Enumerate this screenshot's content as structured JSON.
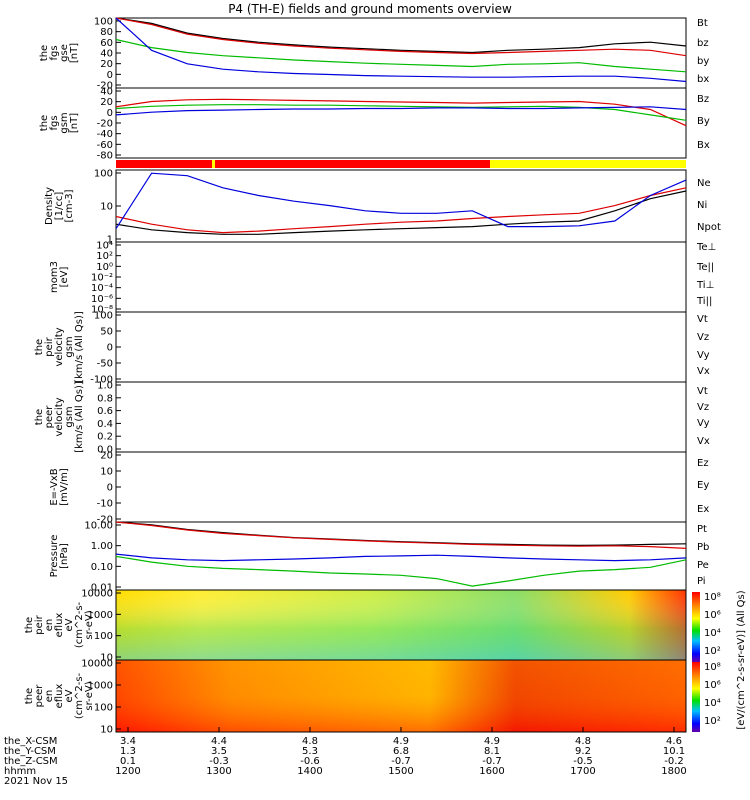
{
  "title": "P4 (TH-E) fields and ground moments overview",
  "chart_data": [
    {
      "type": "line",
      "panel": "fgs-gse",
      "ylabel": [
        "the",
        "fgs",
        "gse",
        "[nT]"
      ],
      "yticks": [
        "100",
        "80",
        "60",
        "40",
        "20",
        "0",
        "-20"
      ],
      "ylim": [
        -30,
        100
      ],
      "legend": [
        "Bt",
        "bz",
        "by",
        "bx"
      ],
      "legend_colors": [
        "#000000",
        "#dd0000",
        "#00bb00",
        "#0000dd"
      ],
      "series": [
        {
          "name": "Bt",
          "color": "#000000",
          "y": [
            130,
            90,
            72,
            62,
            55,
            50,
            46,
            43,
            40,
            38,
            36,
            40,
            42,
            45,
            52,
            55,
            48
          ]
        },
        {
          "name": "bz",
          "color": "#dd0000",
          "y": [
            125,
            88,
            70,
            60,
            53,
            48,
            44,
            41,
            38,
            36,
            34,
            36,
            38,
            40,
            42,
            40,
            30
          ]
        },
        {
          "name": "by",
          "color": "#00bb00",
          "y": [
            60,
            45,
            36,
            30,
            26,
            22,
            19,
            16,
            14,
            12,
            10,
            14,
            15,
            17,
            10,
            5,
            0
          ]
        },
        {
          "name": "bx",
          "color": "#0000dd",
          "y": [
            120,
            40,
            15,
            5,
            0,
            -3,
            -5,
            -7,
            -8,
            -9,
            -10,
            -10,
            -9,
            -8,
            -8,
            -12,
            -18
          ]
        }
      ]
    },
    {
      "type": "line",
      "panel": "fgs-gsm",
      "ylabel": [
        "the",
        "fgs",
        "gsm",
        "[nT]"
      ],
      "yticks": [
        "40",
        "20",
        "0",
        "-20",
        "-40",
        "-60",
        "-80"
      ],
      "ylim": [
        -90,
        40
      ],
      "legend": [
        "Bz",
        "By",
        "Bx"
      ],
      "legend_colors": [
        "#dd0000",
        "#00bb00",
        "#0000dd"
      ],
      "series": [
        {
          "name": "Bz",
          "color": "#dd0000",
          "y": [
            5,
            15,
            18,
            19,
            18,
            17,
            16,
            15,
            14,
            13,
            12,
            13,
            14,
            15,
            10,
            0,
            -30
          ]
        },
        {
          "name": "By",
          "color": "#00bb00",
          "y": [
            2,
            6,
            8,
            9,
            9,
            8,
            8,
            7,
            6,
            5,
            4,
            5,
            6,
            4,
            0,
            -10,
            -20
          ]
        },
        {
          "name": "Bx",
          "color": "#0000dd",
          "y": [
            -10,
            -5,
            -2,
            -1,
            0,
            1,
            1,
            2,
            2,
            3,
            3,
            2,
            2,
            3,
            4,
            5,
            0
          ]
        }
      ]
    },
    {
      "type": "line",
      "panel": "density",
      "ylabel": [
        "Density",
        "[1/cc]",
        "[cm-3]"
      ],
      "yticks": [
        "100",
        "10",
        "1"
      ],
      "ylim": [
        0.3,
        200
      ],
      "scale": "log",
      "legend": [
        "Ne",
        "Ni",
        "Npot"
      ],
      "legend_colors": [
        "#dd0000",
        "#000000",
        "#0000dd"
      ],
      "series": [
        {
          "name": "Ne",
          "color": "#dd0000",
          "y": [
            3,
            1.5,
            0.9,
            0.7,
            0.8,
            1.0,
            1.2,
            1.5,
            1.8,
            2.0,
            2.5,
            3,
            3.5,
            4,
            8,
            20,
            40
          ]
        },
        {
          "name": "Ni",
          "color": "#000000",
          "y": [
            1.5,
            0.9,
            0.7,
            0.6,
            0.6,
            0.7,
            0.8,
            0.9,
            1.0,
            1.1,
            1.2,
            1.5,
            1.8,
            2,
            5,
            15,
            30
          ]
        },
        {
          "name": "Npot",
          "color": "#0000dd",
          "y": [
            1,
            150,
            120,
            40,
            20,
            12,
            8,
            5,
            4,
            4,
            5,
            1.2,
            1.2,
            1.3,
            2,
            20,
            80
          ]
        }
      ]
    },
    {
      "type": "line",
      "panel": "temperature",
      "ylabel": [
        "mom3",
        "[eV]"
      ],
      "yticks": [
        "10⁴",
        "10²",
        "10⁰",
        "10⁻²",
        "10⁻⁴",
        "10⁻⁶",
        "10⁻⁸"
      ],
      "legend": [
        "Te⊥",
        "Te||",
        "Ti⊥",
        "Ti||"
      ],
      "legend_colors": [
        "#dd0000",
        "#000000",
        "#0000dd",
        "#00bb00"
      ],
      "series": []
    },
    {
      "type": "line",
      "panel": "peir-velocity",
      "ylabel": [
        "the",
        "peir",
        "velocity",
        "gsm",
        "[km/s (All Qs)]"
      ],
      "yticks": [
        "100",
        "50",
        "0",
        "-50",
        "-100"
      ],
      "ylim": [
        -100,
        100
      ],
      "legend": [
        "Vt",
        "Vz",
        "Vy",
        "Vx"
      ],
      "legend_colors": [
        "#000000",
        "#dd0000",
        "#00bb00",
        "#0000dd"
      ],
      "series": []
    },
    {
      "type": "line",
      "panel": "peer-velocity",
      "ylabel": [
        "the",
        "peer",
        "velocity",
        "gsm",
        "[km/s (All Qs)]"
      ],
      "yticks": [
        "1.0",
        "0.8",
        "0.6",
        "0.4",
        "0.2",
        "0.0"
      ],
      "ylim": [
        0,
        1
      ],
      "legend": [
        "Vt",
        "Vz",
        "Vy",
        "Vx"
      ],
      "legend_colors": [
        "#000000",
        "#dd0000",
        "#00bb00",
        "#0000dd"
      ],
      "series": []
    },
    {
      "type": "line",
      "panel": "efield",
      "ylabel": [
        "E=-VxB",
        "[mV/m]"
      ],
      "yticks": [
        "20",
        "10",
        "0",
        "-10",
        "-20"
      ],
      "ylim": [
        -20,
        20
      ],
      "legend": [
        "Ez",
        "Ey",
        "Ex"
      ],
      "legend_colors": [
        "#dd0000",
        "#00bb00",
        "#0000dd"
      ],
      "series": []
    },
    {
      "type": "line",
      "panel": "pressure",
      "ylabel": [
        "Pressure",
        "[nPa]"
      ],
      "yticks": [
        "10.00",
        "1.00",
        "0.10",
        "0.01"
      ],
      "ylim": [
        0.005,
        20
      ],
      "scale": "log",
      "legend": [
        "Pt",
        "Pb",
        "Pe",
        "Pi"
      ],
      "legend_colors": [
        "#000000",
        "#dd0000",
        "#00bb00",
        "#0000dd"
      ],
      "series": [
        {
          "name": "Pt",
          "color": "#000000",
          "y": [
            30,
            14,
            8,
            5.5,
            4,
            3,
            2.5,
            2.1,
            1.8,
            1.6,
            1.4,
            1.3,
            1.2,
            1.15,
            1.2,
            1.3,
            1.4
          ]
        },
        {
          "name": "Pb",
          "color": "#dd0000",
          "y": [
            28,
            13,
            7.5,
            5,
            3.8,
            2.9,
            2.4,
            2.0,
            1.7,
            1.5,
            1.3,
            1.2,
            1.1,
            1.05,
            1.1,
            1.0,
            0.8
          ]
        },
        {
          "name": "Pe",
          "color": "#00bb00",
          "y": [
            0.3,
            0.15,
            0.09,
            0.07,
            0.06,
            0.05,
            0.04,
            0.035,
            0.03,
            0.02,
            0.008,
            0.015,
            0.03,
            0.05,
            0.06,
            0.08,
            0.2
          ]
        },
        {
          "name": "Pi",
          "color": "#0000dd",
          "y": [
            0.4,
            0.25,
            0.2,
            0.18,
            0.2,
            0.22,
            0.25,
            0.3,
            0.32,
            0.35,
            0.3,
            0.25,
            0.22,
            0.2,
            0.18,
            0.2,
            0.25
          ]
        }
      ]
    },
    {
      "type": "heatmap",
      "panel": "peir-en-eflux",
      "ylabel": [
        "the",
        "peir",
        "en",
        "eflux",
        "eV",
        "(cm^2-s-",
        "sr-eV)"
      ],
      "yticks": [
        "10000",
        "1000",
        "100",
        "10"
      ]
    },
    {
      "type": "heatmap",
      "panel": "peer-en-eflux",
      "ylabel": [
        "the",
        "peer",
        "en",
        "eflux",
        "eV",
        "(cm^2-s-",
        "sr-eV)"
      ],
      "yticks": [
        "10000",
        "1000",
        "100",
        "10"
      ]
    }
  ],
  "colorbar": {
    "label": "[eV/(cm^2-s-sr-eV)] (All Qs)",
    "ticks_top": [
      "10⁸",
      "10⁶",
      "10⁴",
      "10²"
    ],
    "ticks_bottom": [
      "10⁸",
      "10⁶",
      "10⁴",
      "10²"
    ]
  },
  "axis_rows": [
    {
      "label": "the_X-CSM",
      "values": [
        "3.4",
        "4.4",
        "4.8",
        "4.9",
        "4.9",
        "4.8",
        "4.6"
      ]
    },
    {
      "label": "the_Y-CSM",
      "values": [
        "1.3",
        "3.5",
        "5.3",
        "6.8",
        "8.1",
        "9.2",
        "10.1"
      ]
    },
    {
      "label": "the_Z-CSM",
      "values": [
        "0.1",
        "-0.3",
        "-0.6",
        "-0.7",
        "-0.7",
        "-0.5",
        "-0.2"
      ]
    },
    {
      "label": "hhmm",
      "values": [
        "1200",
        "1300",
        "1400",
        "1500",
        "1600",
        "1700",
        "1800"
      ]
    }
  ],
  "date": "2021 Nov 15"
}
